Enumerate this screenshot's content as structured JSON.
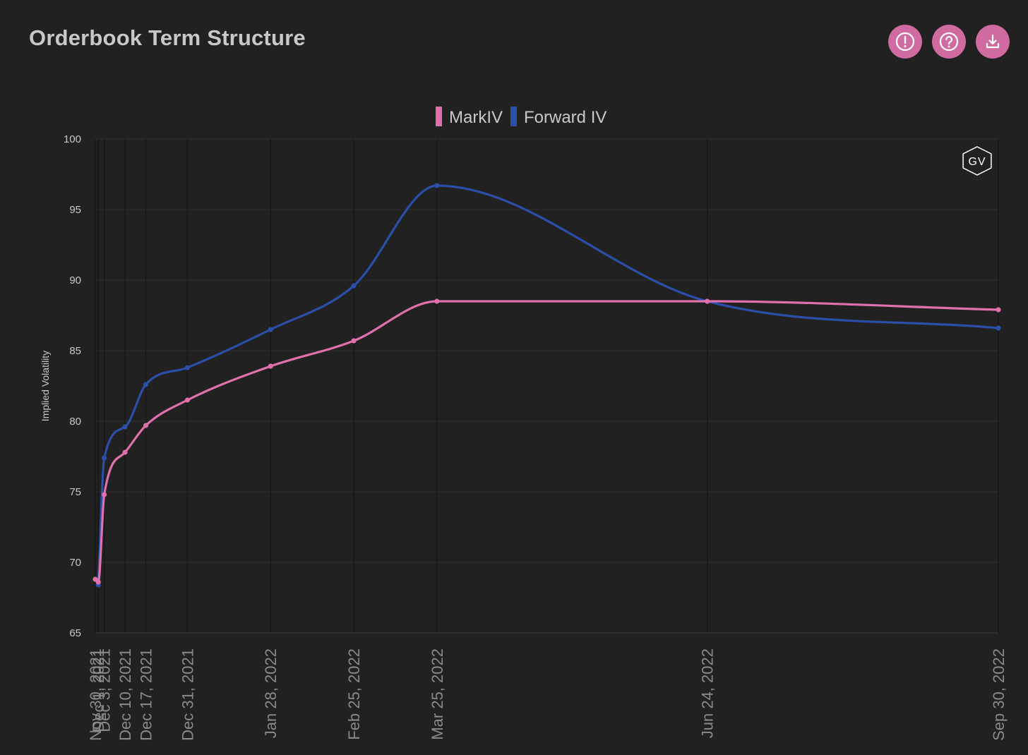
{
  "header": {
    "title": "Orderbook Term Structure"
  },
  "toolbar": {
    "buttons": [
      {
        "icon": "alert-circle-icon",
        "label": "info"
      },
      {
        "icon": "help-circle-icon",
        "label": "help"
      },
      {
        "icon": "download-icon",
        "label": "download"
      }
    ],
    "button_color": "#cf6ba0"
  },
  "watermark": {
    "text": "GV"
  },
  "chart_data": {
    "type": "line",
    "title": "",
    "xlabel": "",
    "ylabel": "Implied Volatility",
    "ylim": [
      65,
      100
    ],
    "yticks": [
      65,
      70,
      75,
      80,
      85,
      90,
      95,
      100
    ],
    "grid": true,
    "legend_position": "top-center",
    "x": [
      "2021-11-30",
      "2021-12-01",
      "2021-12-03",
      "2021-12-10",
      "2021-12-17",
      "2021-12-31",
      "2022-01-28",
      "2022-02-25",
      "2022-03-25",
      "2022-06-24",
      "2022-09-30"
    ],
    "x_tick_labels": [
      "Nov 30, 2021",
      "Dec 1, 2021",
      "Dec 3, 2021",
      "Dec 10, 2021",
      "Dec 17, 2021",
      "Dec 31, 2021",
      "Jan 28, 2022",
      "Feb 25, 2022",
      "Mar 25, 2022",
      "Jun 24, 2022",
      "Sep 30, 2022"
    ],
    "series": [
      {
        "name": "MarkIV",
        "color": "#e070ab",
        "values": [
          68.8,
          68.6,
          74.8,
          77.8,
          79.7,
          81.5,
          83.9,
          85.7,
          88.5,
          88.5,
          87.9
        ]
      },
      {
        "name": "Forward IV",
        "color": "#2b4fa8",
        "values": [
          null,
          68.4,
          77.4,
          79.6,
          82.6,
          83.8,
          86.5,
          89.6,
          96.7,
          88.5,
          86.6
        ]
      }
    ]
  }
}
